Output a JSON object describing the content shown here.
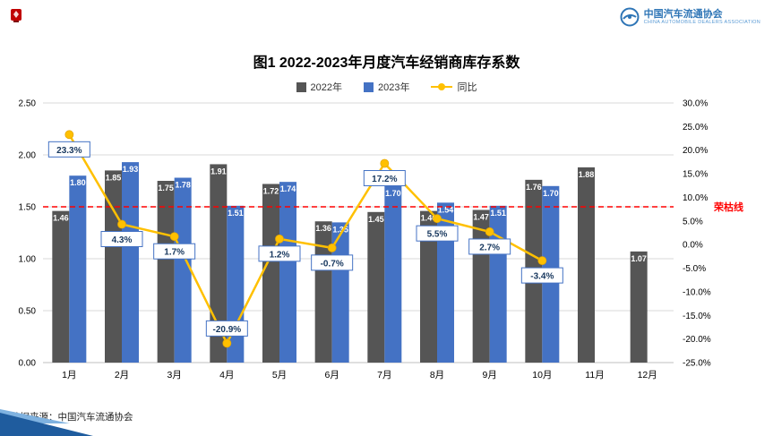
{
  "page": {
    "source_note": "数据来源：中国汽车流通协会",
    "brand": {
      "name": "中国汽车流通协会",
      "subtext": "CHINA AUTOMOBILE DEALERS ASSOCIATION"
    }
  },
  "chart_data": {
    "type": "combo(bar+line)",
    "title": "图1  2022-2023年月度汽车经销商库存系数",
    "categories": [
      "1月",
      "2月",
      "3月",
      "4月",
      "5月",
      "6月",
      "7月",
      "8月",
      "9月",
      "10月",
      "11月",
      "12月"
    ],
    "series": [
      {
        "name": "2022年",
        "type": "bar",
        "axis": "left",
        "color": "#555555",
        "values": [
          1.46,
          1.85,
          1.75,
          1.91,
          1.72,
          1.36,
          1.45,
          1.46,
          1.47,
          1.76,
          1.88,
          1.07
        ]
      },
      {
        "name": "2023年",
        "type": "bar",
        "axis": "left",
        "color": "#4472C4",
        "values": [
          1.8,
          1.93,
          1.78,
          1.51,
          1.74,
          1.35,
          1.7,
          1.54,
          1.51,
          1.7,
          null,
          null
        ]
      },
      {
        "name": "同比",
        "type": "line",
        "axis": "right",
        "color": "#FFC000",
        "values": [
          23.3,
          4.3,
          1.7,
          -20.9,
          1.2,
          -0.7,
          17.2,
          5.5,
          2.7,
          -3.4,
          null,
          null
        ],
        "labels": [
          "23.3%",
          "4.3%",
          "1.7%",
          "-20.9%",
          "1.2%",
          "-0.7%",
          "17.2%",
          "5.5%",
          "2.7%",
          "-3.4%"
        ]
      }
    ],
    "left_axis": {
      "min": 0,
      "max": 2.5,
      "step": 0.5,
      "ticks": [
        "2.50",
        "2.00",
        "1.50",
        "1.00",
        "0.50",
        "0.00"
      ]
    },
    "right_axis": {
      "min": -25,
      "max": 30,
      "step": 5,
      "ticks": [
        "30.0%",
        "25.0%",
        "20.0%",
        "15.0%",
        "10.0%",
        "5.0%",
        "0.0%",
        "-5.0%",
        "-10.0%",
        "-15.0%",
        "-20.0%",
        "-25.0%"
      ]
    },
    "reference_line": {
      "value": 1.5,
      "label": "荣枯线",
      "color": "#FF0000"
    },
    "legend_position": "top",
    "grid": true,
    "bar_label_color": "#FFFFFF",
    "sync_label_text_color": "#17375E",
    "sync_label_border_color": "#4472C4",
    "label_above": [
      false,
      false,
      false,
      true,
      false,
      false,
      false,
      false,
      false,
      false
    ]
  }
}
